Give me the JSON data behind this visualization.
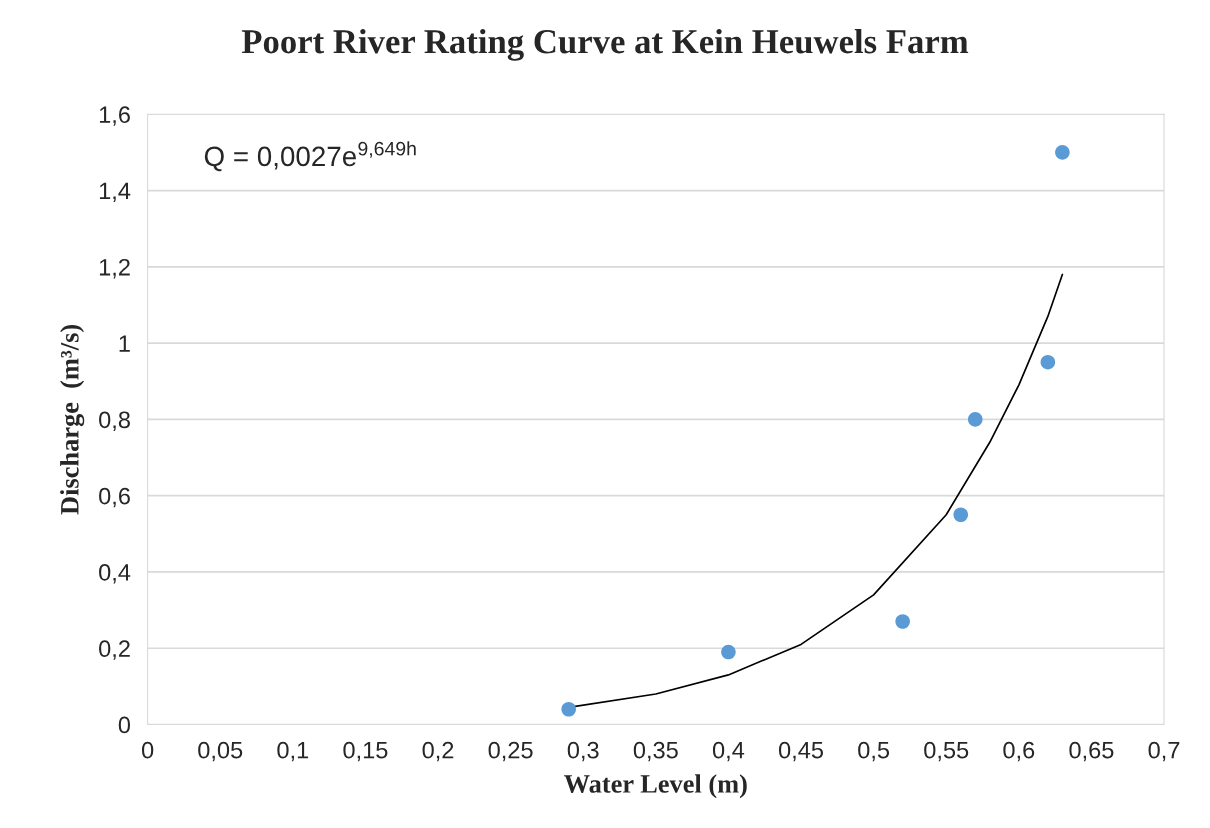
{
  "chart_data": {
    "type": "scatter",
    "title": "Poort River Rating Curve at Kein Heuwels Farm",
    "xlabel": "Water Level (m)",
    "ylabel": "Discharge  (m³/s)",
    "series": [
      {
        "color": "#5b9bd5",
        "marker": "circle",
        "x": [
          0.29,
          0.4,
          0.52,
          0.56,
          0.57,
          0.62,
          0.63
        ],
        "values": [
          0.04,
          0.19,
          0.27,
          0.55,
          0.8,
          0.95,
          1.5
        ]
      },
      {
        "type": "line",
        "color": "#000000",
        "x": [
          0.29,
          0.35,
          0.4,
          0.45,
          0.5,
          0.55,
          0.58,
          0.6,
          0.62,
          0.63
        ],
        "values": [
          0.045,
          0.08,
          0.13,
          0.21,
          0.34,
          0.55,
          0.74,
          0.89,
          1.07,
          1.18
        ]
      }
    ],
    "annotations": [
      "Q = 0,0027e$^{9,649h}$"
    ],
    "xlim": [
      0,
      0.7
    ],
    "ylim": [
      0,
      1.6
    ],
    "xticks": [
      0,
      {
        "value": 0.05,
        "label": "0,05"
      },
      {
        "value": 0.1,
        "label": "0,1"
      },
      {
        "value": 0.15,
        "label": "0,15"
      },
      {
        "value": 0.2,
        "label": "0,2"
      },
      {
        "value": 0.25,
        "label": "0,25"
      },
      {
        "value": 0.3,
        "label": "0,3"
      },
      {
        "value": 0.35,
        "label": "0,35"
      },
      {
        "value": 0.4,
        "label": "0,4"
      },
      {
        "value": 0.45,
        "label": "0,45"
      },
      {
        "value": 0.5,
        "label": "0,5"
      },
      {
        "value": 0.55,
        "label": "0,55"
      },
      {
        "value": 0.6,
        "label": "0,6"
      },
      {
        "value": 0.65,
        "label": "0,65"
      },
      {
        "value": 0.7,
        "label": "0,7"
      }
    ],
    "yticks": [
      0,
      {
        "value": 0.2,
        "label": "0,2"
      },
      {
        "value": 0.4,
        "label": "0,4"
      },
      {
        "value": 0.6,
        "label": "0,6"
      },
      {
        "value": 0.8,
        "label": "0,8"
      },
      1,
      {
        "value": 1.2,
        "label": "1,2"
      },
      {
        "value": 1.4,
        "label": "1,4"
      },
      {
        "value": 1.6,
        "label": "1,6"
      }
    ],
    "grid": "y",
    "legend": false
  }
}
